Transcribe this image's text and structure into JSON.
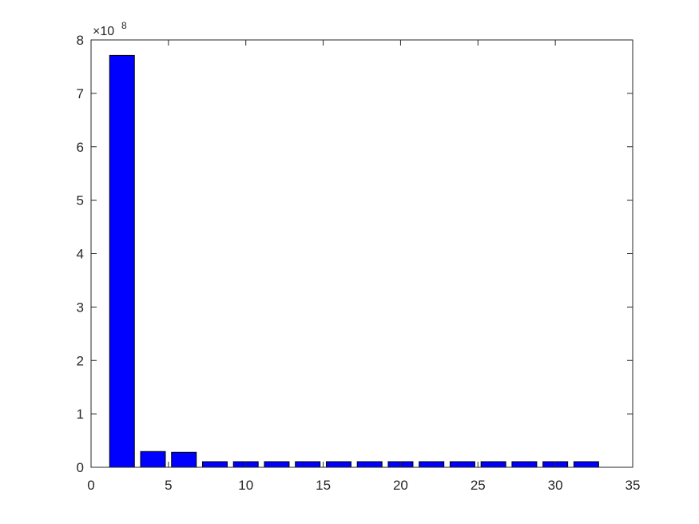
{
  "chart_data": {
    "type": "bar",
    "x": [
      2,
      4,
      6,
      8,
      10,
      12,
      14,
      16,
      18,
      20,
      22,
      24,
      26,
      28,
      30,
      32
    ],
    "values": [
      771000000,
      29500000,
      28000000,
      10500000,
      10500000,
      10500000,
      10500000,
      10500000,
      10500000,
      10500000,
      10500000,
      10500000,
      10500000,
      10500000,
      10500000,
      10500000
    ],
    "xlim": [
      0,
      35
    ],
    "ylim": [
      0,
      800000000
    ],
    "xticks": [
      0,
      5,
      10,
      15,
      20,
      25,
      30,
      35
    ],
    "yticks": [
      0,
      1,
      2,
      3,
      4,
      5,
      6,
      7,
      8
    ],
    "y_exponent_label": {
      "base": "×10",
      "exp": "8"
    },
    "bar_color": "#0000ff",
    "bar_edge_color": "#000000",
    "grid": false,
    "title": "",
    "xlabel": "",
    "ylabel": ""
  }
}
